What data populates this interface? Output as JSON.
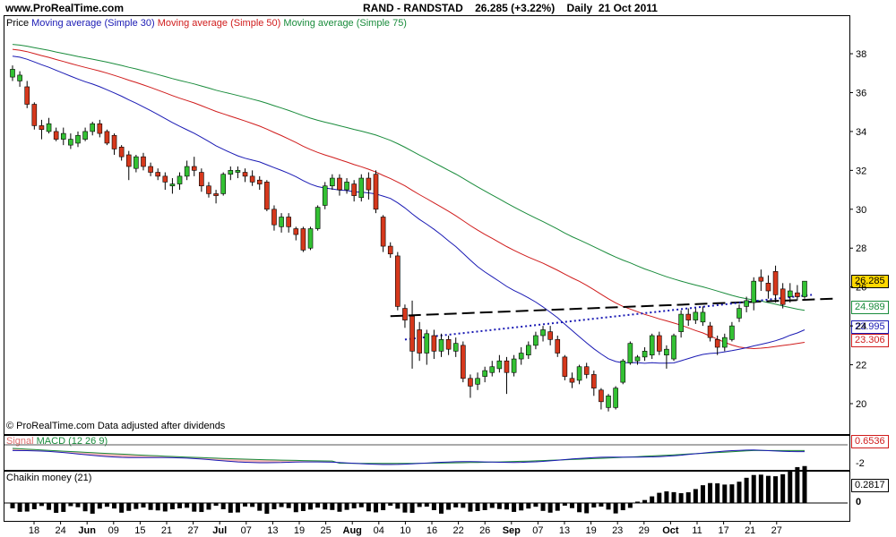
{
  "header": {
    "site": "www.ProRealTime.com",
    "instrument": "RAND - RANDSTAD",
    "price": "26.285",
    "change": "(+3.22%)",
    "period": "Daily",
    "date": "21 Oct 2011"
  },
  "price_panel": {
    "legend_price": "Price",
    "ma30_label": "Moving average (Simple 30)",
    "ma50_label": "Moving average (Simple 50)",
    "ma75_label": "Moving average (Simple 75)",
    "copyright": "© ProRealTime.com  Data adjusted after dividends",
    "y_ticks": [
      "38",
      "36",
      "34",
      "32",
      "30",
      "28",
      "26",
      "24",
      "22",
      "20"
    ],
    "tags": {
      "last": "26.285",
      "ma75": "24.989",
      "ma30": "23.995",
      "ma50": "23.306"
    },
    "colors": {
      "ma30": "#1a1ab4",
      "ma50": "#d01c1c",
      "ma75": "#1a8c3c",
      "up": "#33c133",
      "down": "#d6381c",
      "last_tag_bg": "#ffd800"
    }
  },
  "macd_panel": {
    "label_signal": "Signal",
    "label_macd": "MACD (12 26 9)",
    "value": "0.6536",
    "y_tick": "-2"
  },
  "chaikin_panel": {
    "label": "Chaikin money (21)",
    "value": "0.2817",
    "zero": "0"
  },
  "x_axis": {
    "labels": [
      "18",
      "24",
      "Jun",
      "09",
      "15",
      "21",
      "27",
      "Jul",
      "07",
      "13",
      "19",
      "25",
      "Aug",
      "04",
      "10",
      "16",
      "22",
      "26",
      "Sep",
      "07",
      "13",
      "19",
      "23",
      "29",
      "Oct",
      "11",
      "17",
      "21",
      "27"
    ],
    "bold": [
      "Jun",
      "Jul",
      "Aug",
      "Sep",
      "Oct"
    ]
  },
  "chart_data": {
    "type": "candlestick",
    "title": "RAND - RANDSTAD",
    "period": "Daily",
    "ylim": [
      18.8,
      39.8
    ],
    "candles": [
      {
        "o": 36.8,
        "c": 37.2,
        "h": 37.4,
        "l": 36.6
      },
      {
        "o": 36.6,
        "c": 36.9,
        "h": 37.1,
        "l": 36.3
      },
      {
        "o": 36.3,
        "c": 35.4,
        "h": 36.6,
        "l": 35.2
      },
      {
        "o": 35.4,
        "c": 34.3,
        "h": 35.5,
        "l": 34.1
      },
      {
        "o": 34.3,
        "c": 34.1,
        "h": 34.6,
        "l": 33.6
      },
      {
        "o": 34.0,
        "c": 34.4,
        "h": 34.7,
        "l": 33.9
      },
      {
        "o": 34.0,
        "c": 33.6,
        "h": 34.2,
        "l": 33.5
      },
      {
        "o": 33.6,
        "c": 33.9,
        "h": 34.2,
        "l": 33.3
      },
      {
        "o": 33.3,
        "c": 33.6,
        "h": 33.9,
        "l": 33.1
      },
      {
        "o": 33.4,
        "c": 33.8,
        "h": 34.0,
        "l": 33.2
      },
      {
        "o": 33.6,
        "c": 34.0,
        "h": 34.2,
        "l": 33.5
      },
      {
        "o": 34.0,
        "c": 34.4,
        "h": 34.5,
        "l": 33.8
      },
      {
        "o": 34.4,
        "c": 33.9,
        "h": 34.6,
        "l": 33.7
      },
      {
        "o": 34.0,
        "c": 33.4,
        "h": 34.1,
        "l": 33.3
      },
      {
        "o": 33.8,
        "c": 33.1,
        "h": 33.9,
        "l": 32.8
      },
      {
        "o": 33.2,
        "c": 32.7,
        "h": 33.3,
        "l": 32.5
      },
      {
        "o": 32.8,
        "c": 32.2,
        "h": 33.0,
        "l": 31.5
      },
      {
        "o": 32.1,
        "c": 32.7,
        "h": 32.8,
        "l": 31.9
      },
      {
        "o": 32.7,
        "c": 32.2,
        "h": 32.9,
        "l": 32.0
      },
      {
        "o": 32.2,
        "c": 31.9,
        "h": 32.4,
        "l": 31.7
      },
      {
        "o": 31.9,
        "c": 31.7,
        "h": 32.1,
        "l": 31.5
      },
      {
        "o": 31.7,
        "c": 31.4,
        "h": 31.9,
        "l": 31.0
      },
      {
        "o": 31.2,
        "c": 31.3,
        "h": 31.6,
        "l": 30.8
      },
      {
        "o": 31.3,
        "c": 31.7,
        "h": 31.9,
        "l": 31.0
      },
      {
        "o": 31.7,
        "c": 32.2,
        "h": 32.5,
        "l": 31.5
      },
      {
        "o": 32.2,
        "c": 32.0,
        "h": 32.7,
        "l": 31.7
      },
      {
        "o": 31.9,
        "c": 31.2,
        "h": 32.1,
        "l": 30.9
      },
      {
        "o": 31.2,
        "c": 30.8,
        "h": 31.4,
        "l": 30.6
      },
      {
        "o": 30.8,
        "c": 30.7,
        "h": 31.0,
        "l": 30.3
      },
      {
        "o": 30.8,
        "c": 31.8,
        "h": 31.9,
        "l": 30.7
      },
      {
        "o": 31.8,
        "c": 32.0,
        "h": 32.2,
        "l": 31.5
      },
      {
        "o": 31.9,
        "c": 32.0,
        "h": 32.2,
        "l": 31.6
      },
      {
        "o": 31.9,
        "c": 31.7,
        "h": 32.1,
        "l": 31.4
      },
      {
        "o": 31.7,
        "c": 31.4,
        "h": 32.0,
        "l": 31.2
      },
      {
        "o": 31.5,
        "c": 31.3,
        "h": 31.7,
        "l": 31.0
      },
      {
        "o": 31.4,
        "c": 30.0,
        "h": 31.5,
        "l": 29.9
      },
      {
        "o": 30.0,
        "c": 29.2,
        "h": 30.2,
        "l": 28.9
      },
      {
        "o": 29.1,
        "c": 29.6,
        "h": 29.8,
        "l": 28.8
      },
      {
        "o": 29.6,
        "c": 29.1,
        "h": 29.8,
        "l": 28.8
      },
      {
        "o": 29.0,
        "c": 28.7,
        "h": 29.1,
        "l": 28.4
      },
      {
        "o": 29.0,
        "c": 27.9,
        "h": 29.1,
        "l": 27.8
      },
      {
        "o": 28.0,
        "c": 29.0,
        "h": 29.1,
        "l": 27.9
      },
      {
        "o": 29.0,
        "c": 30.1,
        "h": 30.2,
        "l": 28.9
      },
      {
        "o": 30.2,
        "c": 31.2,
        "h": 31.4,
        "l": 30.0
      },
      {
        "o": 31.2,
        "c": 31.6,
        "h": 31.8,
        "l": 31.0
      },
      {
        "o": 31.6,
        "c": 31.0,
        "h": 31.8,
        "l": 30.7
      },
      {
        "o": 31.0,
        "c": 31.4,
        "h": 31.6,
        "l": 30.8
      },
      {
        "o": 31.3,
        "c": 30.7,
        "h": 31.5,
        "l": 30.4
      },
      {
        "o": 30.6,
        "c": 31.6,
        "h": 31.8,
        "l": 30.4
      },
      {
        "o": 31.6,
        "c": 31.0,
        "h": 31.9,
        "l": 30.5
      },
      {
        "o": 31.8,
        "c": 30.0,
        "h": 32.0,
        "l": 29.8
      },
      {
        "o": 29.6,
        "c": 28.1,
        "h": 29.7,
        "l": 27.8
      },
      {
        "o": 28.1,
        "c": 27.7,
        "h": 28.3,
        "l": 27.5
      },
      {
        "o": 27.6,
        "c": 25.0,
        "h": 27.8,
        "l": 24.8
      },
      {
        "o": 24.9,
        "c": 24.3,
        "h": 25.1,
        "l": 23.9
      },
      {
        "o": 24.5,
        "c": 22.7,
        "h": 25.3,
        "l": 21.8
      },
      {
        "o": 23.8,
        "c": 22.6,
        "h": 24.2,
        "l": 22.2
      },
      {
        "o": 22.6,
        "c": 23.6,
        "h": 23.8,
        "l": 22.0
      },
      {
        "o": 23.5,
        "c": 22.7,
        "h": 23.8,
        "l": 22.3
      },
      {
        "o": 22.7,
        "c": 23.3,
        "h": 23.6,
        "l": 22.4
      },
      {
        "o": 23.3,
        "c": 22.8,
        "h": 23.5,
        "l": 22.5
      },
      {
        "o": 22.7,
        "c": 23.1,
        "h": 23.4,
        "l": 22.4
      },
      {
        "o": 23.0,
        "c": 21.3,
        "h": 23.2,
        "l": 21.1
      },
      {
        "o": 21.3,
        "c": 20.9,
        "h": 21.5,
        "l": 20.3
      },
      {
        "o": 21.0,
        "c": 21.3,
        "h": 21.6,
        "l": 20.7
      },
      {
        "o": 21.4,
        "c": 21.7,
        "h": 21.9,
        "l": 21.1
      },
      {
        "o": 21.6,
        "c": 21.9,
        "h": 22.2,
        "l": 21.4
      },
      {
        "o": 21.8,
        "c": 22.2,
        "h": 22.5,
        "l": 21.6
      },
      {
        "o": 22.2,
        "c": 21.6,
        "h": 22.4,
        "l": 20.5
      },
      {
        "o": 21.6,
        "c": 22.3,
        "h": 22.5,
        "l": 21.4
      },
      {
        "o": 22.3,
        "c": 22.6,
        "h": 22.9,
        "l": 22.0
      },
      {
        "o": 22.5,
        "c": 23.0,
        "h": 23.2,
        "l": 22.3
      },
      {
        "o": 23.0,
        "c": 23.5,
        "h": 23.7,
        "l": 22.8
      },
      {
        "o": 23.5,
        "c": 23.8,
        "h": 24.0,
        "l": 23.2
      },
      {
        "o": 23.7,
        "c": 23.3,
        "h": 24.0,
        "l": 23.0
      },
      {
        "o": 23.3,
        "c": 22.6,
        "h": 23.5,
        "l": 22.4
      },
      {
        "o": 22.4,
        "c": 21.4,
        "h": 22.5,
        "l": 21.2
      },
      {
        "o": 21.3,
        "c": 21.1,
        "h": 21.6,
        "l": 20.8
      },
      {
        "o": 21.2,
        "c": 21.9,
        "h": 22.0,
        "l": 21.0
      },
      {
        "o": 21.9,
        "c": 21.5,
        "h": 22.1,
        "l": 21.3
      },
      {
        "o": 21.5,
        "c": 20.8,
        "h": 21.7,
        "l": 20.4
      },
      {
        "o": 20.7,
        "c": 20.1,
        "h": 20.8,
        "l": 19.7
      },
      {
        "o": 19.8,
        "c": 20.4,
        "h": 20.5,
        "l": 19.6
      },
      {
        "o": 19.8,
        "c": 20.8,
        "h": 20.9,
        "l": 19.7
      },
      {
        "o": 21.1,
        "c": 22.2,
        "h": 22.3,
        "l": 21.0
      },
      {
        "o": 22.1,
        "c": 23.1,
        "h": 23.2,
        "l": 22.0
      },
      {
        "o": 22.2,
        "c": 22.4,
        "h": 22.5,
        "l": 22.0
      },
      {
        "o": 22.4,
        "c": 22.7,
        "h": 22.9,
        "l": 22.2
      },
      {
        "o": 22.5,
        "c": 23.5,
        "h": 23.6,
        "l": 22.3
      },
      {
        "o": 23.5,
        "c": 22.7,
        "h": 23.7,
        "l": 22.5
      },
      {
        "o": 22.5,
        "c": 22.8,
        "h": 23.0,
        "l": 21.8
      },
      {
        "o": 22.3,
        "c": 23.5,
        "h": 23.6,
        "l": 22.2
      },
      {
        "o": 23.7,
        "c": 24.6,
        "h": 24.8,
        "l": 23.4
      },
      {
        "o": 24.6,
        "c": 24.3,
        "h": 24.9,
        "l": 24.0
      },
      {
        "o": 24.3,
        "c": 24.7,
        "h": 24.9,
        "l": 24.1
      },
      {
        "o": 24.2,
        "c": 24.7,
        "h": 25.0,
        "l": 24.0
      },
      {
        "o": 24.0,
        "c": 23.4,
        "h": 24.2,
        "l": 23.2
      },
      {
        "o": 23.3,
        "c": 22.9,
        "h": 23.5,
        "l": 22.5
      },
      {
        "o": 22.9,
        "c": 23.4,
        "h": 23.6,
        "l": 22.7
      },
      {
        "o": 23.3,
        "c": 24.0,
        "h": 24.2,
        "l": 23.2
      },
      {
        "o": 24.4,
        "c": 24.9,
        "h": 25.1,
        "l": 24.2
      },
      {
        "o": 25.0,
        "c": 25.3,
        "h": 25.5,
        "l": 24.7
      },
      {
        "o": 25.2,
        "c": 26.3,
        "h": 26.5,
        "l": 24.8
      },
      {
        "o": 26.5,
        "c": 26.3,
        "h": 26.9,
        "l": 25.8
      },
      {
        "o": 26.2,
        "c": 25.8,
        "h": 26.6,
        "l": 25.4
      },
      {
        "o": 26.8,
        "c": 25.6,
        "h": 27.1,
        "l": 25.2
      },
      {
        "o": 25.9,
        "c": 25.1,
        "h": 26.2,
        "l": 24.9
      },
      {
        "o": 25.5,
        "c": 25.8,
        "h": 26.2,
        "l": 25.2
      },
      {
        "o": 25.7,
        "c": 25.5,
        "h": 26.1,
        "l": 25.3
      },
      {
        "o": 25.5,
        "c": 26.3,
        "h": 26.3,
        "l": 25.4
      }
    ]
  }
}
